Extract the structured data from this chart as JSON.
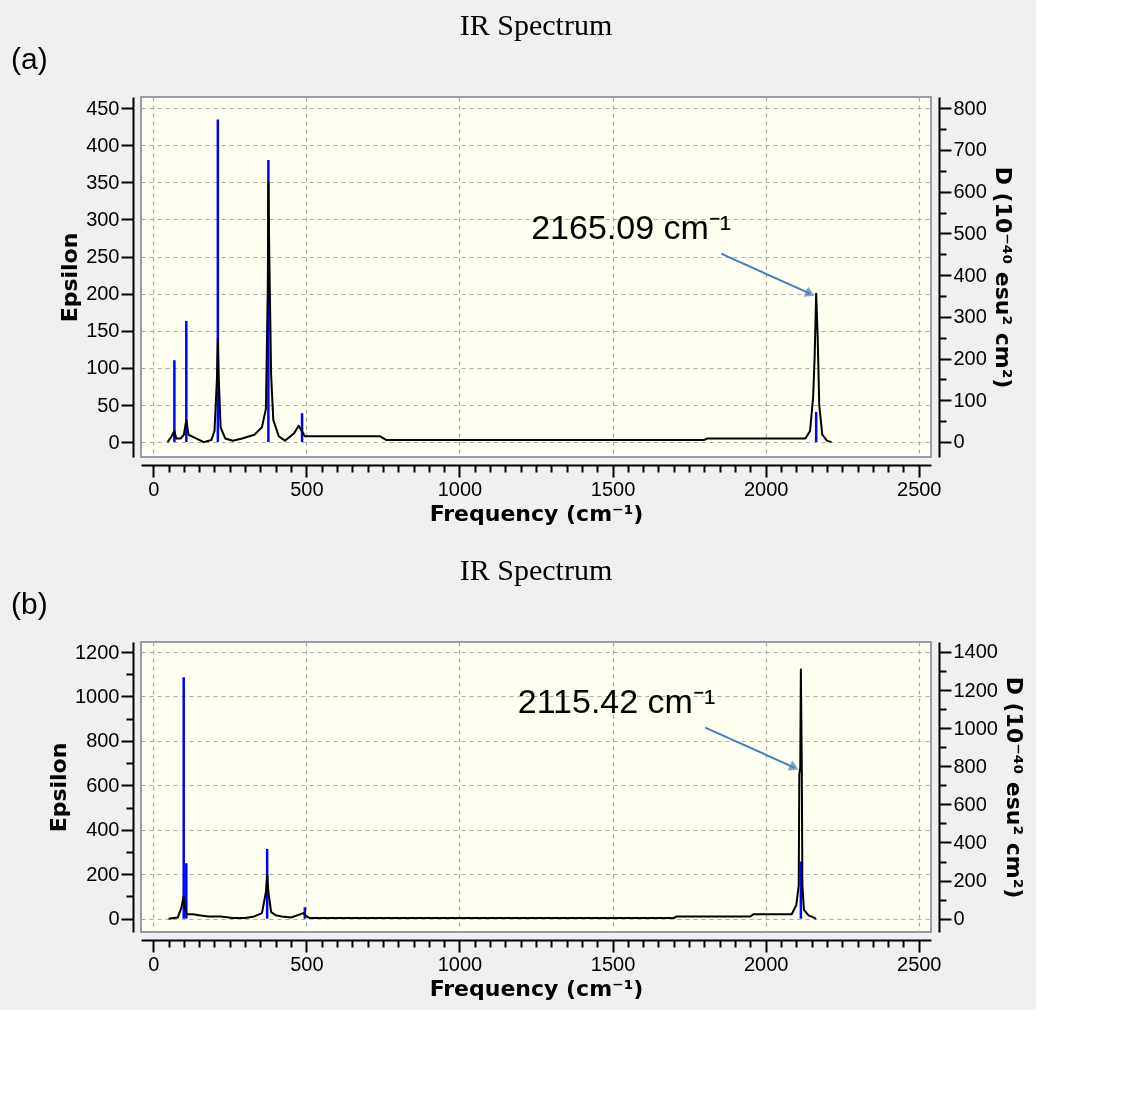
{
  "chart_data": [
    {
      "type": "line",
      "title": "IR Spectrum",
      "xlabel": "Frequency (cm⁻¹)",
      "ylabel": "Epsilon",
      "y2label": "D (10⁻⁴⁰ esu² cm²)",
      "grid": true,
      "xlim": [
        -40,
        2540
      ],
      "xticks": [
        0,
        {
          "value": 50,
          "label": null
        },
        {
          "value": 100,
          "label": null
        },
        {
          "value": 150,
          "label": null
        },
        {
          "value": 200,
          "label": null
        },
        {
          "value": 250,
          "label": null
        },
        {
          "value": 300,
          "label": null
        },
        {
          "value": 350,
          "label": null
        },
        {
          "value": 400,
          "label": null
        },
        {
          "value": 450,
          "label": null
        },
        500,
        {
          "value": 550,
          "label": null
        },
        {
          "value": 600,
          "label": null
        },
        {
          "value": 650,
          "label": null
        },
        {
          "value": 700,
          "label": null
        },
        {
          "value": 750,
          "label": null
        },
        {
          "value": 800,
          "label": null
        },
        {
          "value": 850,
          "label": null
        },
        {
          "value": 900,
          "label": null
        },
        {
          "value": 950,
          "label": null
        },
        1000,
        {
          "value": 1050,
          "label": null
        },
        {
          "value": 1100,
          "label": null
        },
        {
          "value": 1150,
          "label": null
        },
        {
          "value": 1200,
          "label": null
        },
        {
          "value": 1250,
          "label": null
        },
        {
          "value": 1300,
          "label": null
        },
        {
          "value": 1350,
          "label": null
        },
        {
          "value": 1400,
          "label": null
        },
        {
          "value": 1450,
          "label": null
        },
        1500,
        {
          "value": 1550,
          "label": null
        },
        {
          "value": 1600,
          "label": null
        },
        {
          "value": 1650,
          "label": null
        },
        {
          "value": 1700,
          "label": null
        },
        {
          "value": 1750,
          "label": null
        },
        {
          "value": 1800,
          "label": null
        },
        {
          "value": 1850,
          "label": null
        },
        {
          "value": 1900,
          "label": null
        },
        {
          "value": 1950,
          "label": null
        },
        2000,
        {
          "value": 2050,
          "label": null
        },
        {
          "value": 2100,
          "label": null
        },
        {
          "value": 2150,
          "label": null
        },
        {
          "value": 2200,
          "label": null
        },
        {
          "value": 2250,
          "label": null
        },
        {
          "value": 2300,
          "label": null
        },
        {
          "value": 2350,
          "label": null
        },
        {
          "value": 2400,
          "label": null
        },
        {
          "value": 2450,
          "label": null
        },
        2500
      ],
      "ylim": [
        -20,
        465
      ],
      "yticks": [
        0,
        50,
        100,
        150,
        200,
        250,
        300,
        350,
        400,
        450
      ],
      "y2lim": [
        -36,
        827
      ],
      "y2ticks": [
        0,
        {
          "value": 50,
          "label": null
        },
        100,
        {
          "value": 150,
          "label": null
        },
        200,
        {
          "value": 250,
          "label": null
        },
        300,
        {
          "value": 350,
          "label": null
        },
        400,
        {
          "value": 450,
          "label": null
        },
        500,
        {
          "value": 550,
          "label": null
        },
        600,
        {
          "value": 650,
          "label": null
        },
        700,
        {
          "value": 750,
          "label": null
        },
        800
      ],
      "annotations": [
        "(a)",
        {
          "text": "2165.09 cm⁻¹",
          "x": 2165,
          "y": 200
        }
      ],
      "series": [
        {
          "color": "#000000",
          "x": [
            47,
            60,
            69,
            75,
            90,
            100,
            108,
            115,
            140,
            165,
            190,
            200,
            208,
            211,
            214,
            220,
            235,
            260,
            290,
            330,
            355,
            368,
            374,
            376,
            379,
            385,
            392,
            410,
            430,
            460,
            475,
            485,
            495,
            740,
            760,
            1800,
            1810,
            2130,
            2145,
            2155,
            2160,
            2165,
            2170,
            2175,
            2185,
            2200,
            2215
          ],
          "values": [
            0,
            8,
            15,
            5,
            5,
            10,
            30,
            10,
            5,
            0,
            3,
            15,
            85,
            140,
            85,
            20,
            5,
            2,
            5,
            10,
            20,
            45,
            207,
            350,
            250,
            90,
            30,
            8,
            2,
            12,
            22,
            15,
            8,
            8,
            3,
            3,
            5,
            5,
            15,
            60,
            115,
            200,
            140,
            50,
            10,
            2,
            0
          ]
        },
        {
          "type": "bar",
          "axis": "y2",
          "color": "#0000ff",
          "x": [
            69,
            108,
            211,
            376,
            486,
            2165
          ],
          "values": [
            196,
            290,
            773,
            676,
            69,
            72
          ]
        }
      ]
    },
    {
      "type": "line",
      "title": "IR Spectrum",
      "xlabel": "Frequency (cm⁻¹)",
      "ylabel": "Epsilon",
      "y2label": "D (10⁻⁴⁰ esu² cm²)",
      "grid": true,
      "xlim": [
        -40,
        2540
      ],
      "xticks": [
        0,
        {
          "value": 50,
          "label": null
        },
        {
          "value": 100,
          "label": null
        },
        {
          "value": 150,
          "label": null
        },
        {
          "value": 200,
          "label": null
        },
        {
          "value": 250,
          "label": null
        },
        {
          "value": 300,
          "label": null
        },
        {
          "value": 350,
          "label": null
        },
        {
          "value": 400,
          "label": null
        },
        {
          "value": 450,
          "label": null
        },
        500,
        {
          "value": 550,
          "label": null
        },
        {
          "value": 600,
          "label": null
        },
        {
          "value": 650,
          "label": null
        },
        {
          "value": 700,
          "label": null
        },
        {
          "value": 750,
          "label": null
        },
        {
          "value": 800,
          "label": null
        },
        {
          "value": 850,
          "label": null
        },
        {
          "value": 900,
          "label": null
        },
        {
          "value": 950,
          "label": null
        },
        1000,
        {
          "value": 1050,
          "label": null
        },
        {
          "value": 1100,
          "label": null
        },
        {
          "value": 1150,
          "label": null
        },
        {
          "value": 1200,
          "label": null
        },
        {
          "value": 1250,
          "label": null
        },
        {
          "value": 1300,
          "label": null
        },
        {
          "value": 1350,
          "label": null
        },
        {
          "value": 1400,
          "label": null
        },
        {
          "value": 1450,
          "label": null
        },
        1500,
        {
          "value": 1550,
          "label": null
        },
        {
          "value": 1600,
          "label": null
        },
        {
          "value": 1650,
          "label": null
        },
        {
          "value": 1700,
          "label": null
        },
        {
          "value": 1750,
          "label": null
        },
        {
          "value": 1800,
          "label": null
        },
        {
          "value": 1850,
          "label": null
        },
        {
          "value": 1900,
          "label": null
        },
        {
          "value": 1950,
          "label": null
        },
        2000,
        {
          "value": 2050,
          "label": null
        },
        {
          "value": 2100,
          "label": null
        },
        {
          "value": 2150,
          "label": null
        },
        {
          "value": 2200,
          "label": null
        },
        {
          "value": 2250,
          "label": null
        },
        {
          "value": 2300,
          "label": null
        },
        {
          "value": 2350,
          "label": null
        },
        {
          "value": 2400,
          "label": null
        },
        {
          "value": 2450,
          "label": null
        },
        2500
      ],
      "ylim": [
        -60,
        1245
      ],
      "yticks": [
        0,
        {
          "value": 100,
          "label": null
        },
        200,
        {
          "value": 300,
          "label": null
        },
        400,
        {
          "value": 500,
          "label": null
        },
        600,
        {
          "value": 700,
          "label": null
        },
        800,
        {
          "value": 900,
          "label": null
        },
        1000,
        {
          "value": 1100,
          "label": null
        },
        1200
      ],
      "y2lim": [
        -70,
        1452
      ],
      "y2ticks": [
        0,
        {
          "value": 100,
          "label": null
        },
        200,
        {
          "value": 300,
          "label": null
        },
        400,
        {
          "value": 500,
          "label": null
        },
        600,
        {
          "value": 700,
          "label": null
        },
        800,
        {
          "value": 900,
          "label": null
        },
        1000,
        {
          "value": 1100,
          "label": null
        },
        1200,
        {
          "value": 1300,
          "label": null
        },
        1400
      ],
      "annotations": [
        "(b)",
        {
          "text": "2115.42 cm⁻¹",
          "x": 2113,
          "y": 680
        }
      ],
      "series": [
        {
          "color": "#000000",
          "x": [
            50,
            80,
            92,
            99,
            103,
            110,
            130,
            150,
            180,
            220,
            260,
            300,
            330,
            355,
            368,
            372,
            376,
            385,
            400,
            420,
            450,
            470,
            490,
            497,
            510,
            1700,
            1710,
            1950,
            1960,
            2085,
            2100,
            2108,
            2110,
            2113,
            2115,
            2118,
            2120,
            2125,
            2140,
            2165
          ],
          "values": [
            0,
            5,
            50,
            100,
            55,
            20,
            20,
            15,
            10,
            10,
            3,
            3,
            10,
            25,
            120,
            200,
            120,
            30,
            15,
            10,
            5,
            15,
            25,
            15,
            3,
            3,
            10,
            10,
            20,
            20,
            60,
            150,
            650,
            680,
            1121,
            690,
            150,
            40,
            15,
            0
          ]
        },
        {
          "type": "bar",
          "axis": "y2",
          "color": "#0000ff",
          "x": [
            99.5,
            108,
            372,
            495,
            2115
          ],
          "values": [
            1267,
            291,
            366,
            60,
            300
          ]
        }
      ]
    }
  ]
}
